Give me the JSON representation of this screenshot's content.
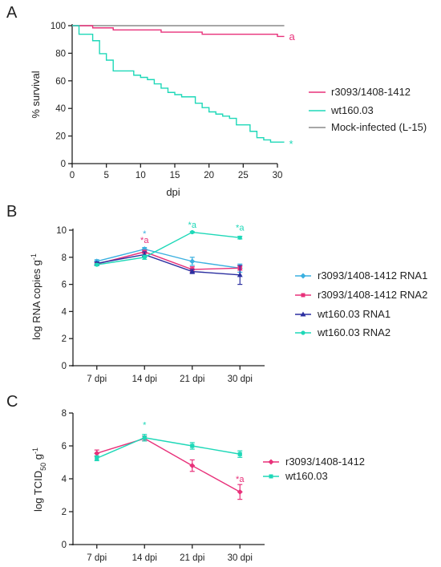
{
  "colors": {
    "pink": "#E8317A",
    "cyan": "#1ED8B8",
    "grey": "#8A8A8A",
    "lightblue": "#3BB0E0",
    "navy": "#2B2FA0"
  },
  "chart_data": [
    {
      "panel_label": "A",
      "type": "line",
      "step": true,
      "xlabel": "dpi",
      "ylabel": "% survival",
      "xlim": [
        0,
        30
      ],
      "ylim": [
        0,
        100
      ],
      "xticks": [
        "0",
        "5",
        "10",
        "15",
        "20",
        "25",
        "30"
      ],
      "yticks": [
        "0",
        "20",
        "40",
        "60",
        "80",
        "100"
      ],
      "series": [
        {
          "name": "r3093/1408-1412",
          "color": "#E8317A",
          "x": [
            0,
            3,
            6,
            13,
            19,
            30,
            31
          ],
          "y": [
            100,
            98.4,
            96.9,
            95.3,
            93.8,
            92.2,
            92.2
          ]
        },
        {
          "name": "wt160.03",
          "color": "#1ED8B8",
          "x": [
            0,
            1,
            3,
            4,
            5,
            6,
            9,
            10,
            11,
            12,
            13,
            14,
            15,
            16,
            18,
            19,
            20,
            21,
            22,
            23,
            24,
            26,
            27,
            28,
            29,
            31
          ],
          "y": [
            100,
            93.8,
            89.1,
            79.7,
            75,
            67.2,
            64.1,
            62.5,
            60.9,
            57.8,
            54.7,
            51.6,
            50,
            48.4,
            43.8,
            40.6,
            37.5,
            35.9,
            34.4,
            32.8,
            28.1,
            23.4,
            18.8,
            17.2,
            15.6,
            15.6
          ]
        },
        {
          "name": "Mock-infected (L-15)",
          "color": "#8A8A8A",
          "x": [
            0,
            31
          ],
          "y": [
            100,
            100
          ]
        }
      ],
      "annotations": [
        {
          "text": "a",
          "x": 31,
          "y": 92,
          "color": "#E8317A"
        },
        {
          "text": "*",
          "x": 31,
          "y": 14,
          "color": "#1ED8B8"
        }
      ]
    },
    {
      "panel_label": "B",
      "type": "line",
      "categories": [
        "7 dpi",
        "14 dpi",
        "21 dpi",
        "30 dpi"
      ],
      "ylabel_main": "log RNA copies g",
      "ylabel_sup": "-1",
      "ylim": [
        0,
        10
      ],
      "yticks": [
        "0",
        "2",
        "4",
        "6",
        "8",
        "10"
      ],
      "series": [
        {
          "name": "r3093/1408-1412 RNA1",
          "color": "#3BB0E0",
          "marker": "diamond",
          "values": [
            7.7,
            8.6,
            7.7,
            7.2
          ],
          "err": [
            0.12,
            0.12,
            0.3,
            0.3
          ]
        },
        {
          "name": "r3093/1408-1412 RNA2",
          "color": "#E8317A",
          "marker": "square",
          "values": [
            7.5,
            8.4,
            7.1,
            7.2
          ],
          "err": [
            0.1,
            0.12,
            0.2,
            0.15
          ]
        },
        {
          "name": "wt160.03 RNA1",
          "color": "#2B2FA0",
          "marker": "triangle",
          "values": [
            7.55,
            8.2,
            6.95,
            6.7
          ],
          "err": [
            0.1,
            0.2,
            0.15,
            0.7
          ]
        },
        {
          "name": "wt160.03 RNA2",
          "color": "#1ED8B8",
          "marker": "circle",
          "values": [
            7.45,
            8.0,
            9.85,
            9.45
          ],
          "err": [
            0.08,
            0.15,
            0.05,
            0.1
          ]
        }
      ],
      "annotations": [
        {
          "text": "*",
          "x": "14 dpi",
          "y": 9.75,
          "color": "#3BB0E0"
        },
        {
          "text": "*a",
          "x": "14 dpi",
          "y": 9.3,
          "color": "#E8317A"
        },
        {
          "text": "*a",
          "x": "21 dpi",
          "y": 10.4,
          "color": "#1ED8B8"
        },
        {
          "text": "*a",
          "x": "30 dpi",
          "y": 10.2,
          "color": "#1ED8B8"
        }
      ]
    },
    {
      "panel_label": "C",
      "type": "line",
      "categories": [
        "7 dpi",
        "14 dpi",
        "21 dpi",
        "30 dpi"
      ],
      "ylabel_main": "log TCID",
      "ylabel_sub": "50",
      "ylabel_end": " g",
      "ylabel_sup": "-1",
      "ylim": [
        0,
        8
      ],
      "yticks": [
        "0",
        "2",
        "4",
        "6",
        "8"
      ],
      "series": [
        {
          "name": "r3093/1408-1412",
          "color": "#E8317A",
          "marker": "diamond",
          "values": [
            5.55,
            6.45,
            4.8,
            3.2
          ],
          "err": [
            0.2,
            0.15,
            0.35,
            0.45
          ]
        },
        {
          "name": "wt160.03",
          "color": "#1ED8B8",
          "marker": "square",
          "values": [
            5.25,
            6.5,
            6.0,
            5.5
          ],
          "err": [
            0.15,
            0.2,
            0.2,
            0.2
          ]
        }
      ],
      "annotations": [
        {
          "text": "*",
          "x": "14 dpi",
          "y": 7.3,
          "color": "#1ED8B8"
        },
        {
          "text": "*a",
          "x": "30 dpi",
          "y": 4.0,
          "color": "#E8317A"
        }
      ]
    }
  ]
}
